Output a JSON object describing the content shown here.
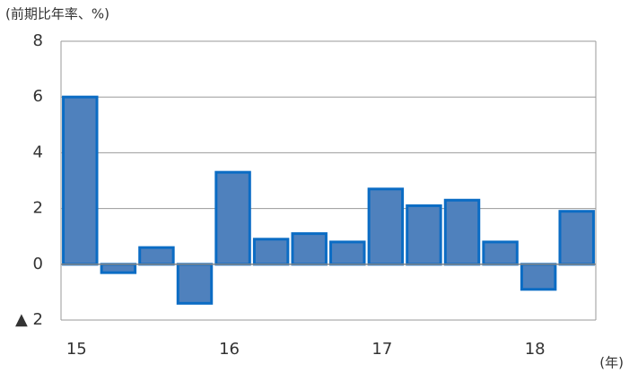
{
  "chart_data": {
    "type": "bar",
    "y_label": "(前期比年率、%)",
    "x_label": "(年)",
    "categories": [
      "15",
      null,
      null,
      null,
      "16",
      null,
      null,
      null,
      "17",
      null,
      null,
      null,
      "18",
      null
    ],
    "values": [
      6.0,
      -0.3,
      0.6,
      -1.4,
      3.3,
      0.9,
      1.1,
      0.8,
      2.7,
      2.1,
      2.3,
      0.8,
      -0.9,
      1.9
    ],
    "color": "#4f81bd",
    "edge_color": "#0b6cc4",
    "ylim": [
      -2,
      8
    ],
    "yticks": [
      {
        "value": -2,
        "label": "▲ 2"
      },
      0,
      2,
      4,
      6,
      8
    ],
    "grid": true
  }
}
